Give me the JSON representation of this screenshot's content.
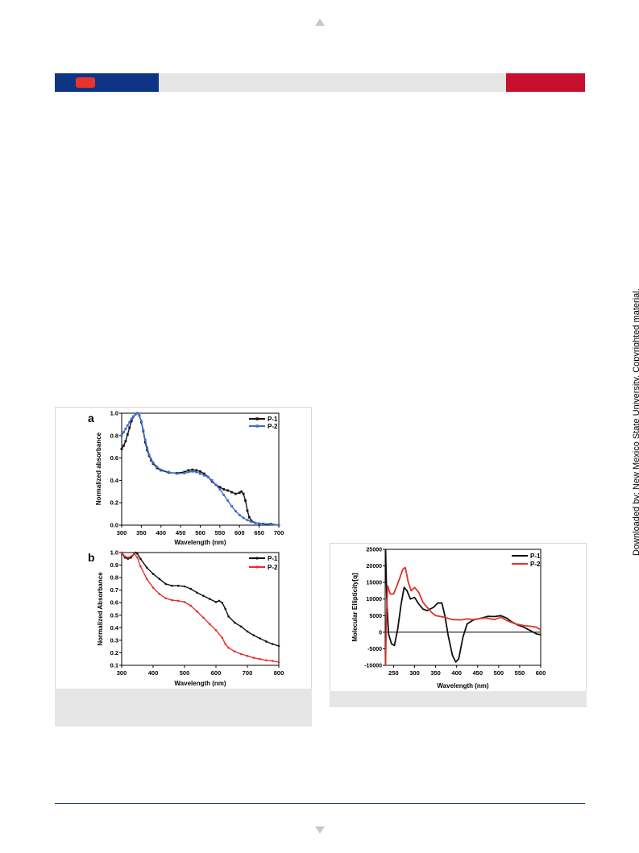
{
  "watermark": "Downloaded by: New Mexico State University. Copyrighted material.",
  "colors": {
    "header_blue": "#0d3585",
    "header_red": "#c8102e",
    "badge_red": "#e8322c",
    "caption_gray": "#e6e6e6"
  },
  "chart_data": [
    {
      "id": "a",
      "type": "line",
      "panel_label": "a",
      "xlabel": "Wavelength (nm)",
      "ylabel": "Normalized absorbance",
      "xlim": [
        300,
        700
      ],
      "ylim": [
        0.0,
        1.0
      ],
      "xticks": [
        300,
        350,
        400,
        450,
        500,
        550,
        600,
        650,
        700
      ],
      "yticks": [
        0.0,
        0.2,
        0.4,
        0.6,
        0.8,
        1.0
      ],
      "ytick_labels": [
        "0.0",
        "0.2",
        "0.4",
        "0.6",
        "0.8",
        "1.0"
      ],
      "legend_position": "top-right",
      "marker": "square",
      "series": [
        {
          "name": "P-1",
          "color": "#111111",
          "points": [
            [
              300,
              0.68
            ],
            [
              305,
              0.71
            ],
            [
              310,
              0.75
            ],
            [
              315,
              0.81
            ],
            [
              320,
              0.87
            ],
            [
              325,
              0.93
            ],
            [
              330,
              0.97
            ],
            [
              335,
              0.99
            ],
            [
              340,
              1.0
            ],
            [
              345,
              0.98
            ],
            [
              350,
              0.92
            ],
            [
              355,
              0.84
            ],
            [
              360,
              0.74
            ],
            [
              365,
              0.67
            ],
            [
              370,
              0.62
            ],
            [
              375,
              0.58
            ],
            [
              380,
              0.55
            ],
            [
              390,
              0.51
            ],
            [
              400,
              0.49
            ],
            [
              420,
              0.47
            ],
            [
              440,
              0.465
            ],
            [
              460,
              0.475
            ],
            [
              470,
              0.49
            ],
            [
              480,
              0.495
            ],
            [
              490,
              0.49
            ],
            [
              500,
              0.48
            ],
            [
              510,
              0.46
            ],
            [
              520,
              0.43
            ],
            [
              530,
              0.39
            ],
            [
              540,
              0.36
            ],
            [
              550,
              0.34
            ],
            [
              560,
              0.32
            ],
            [
              570,
              0.31
            ],
            [
              580,
              0.295
            ],
            [
              590,
              0.28
            ],
            [
              600,
              0.29
            ],
            [
              605,
              0.3
            ],
            [
              610,
              0.28
            ],
            [
              615,
              0.22
            ],
            [
              620,
              0.13
            ],
            [
              625,
              0.07
            ],
            [
              630,
              0.04
            ],
            [
              640,
              0.02
            ],
            [
              650,
              0.015
            ],
            [
              660,
              0.012
            ],
            [
              680,
              0.01
            ],
            [
              700,
              0.0
            ]
          ]
        },
        {
          "name": "P-2",
          "color": "#3b6dc4",
          "points": [
            [
              300,
              0.8
            ],
            [
              305,
              0.83
            ],
            [
              310,
              0.86
            ],
            [
              315,
              0.89
            ],
            [
              320,
              0.92
            ],
            [
              325,
              0.95
            ],
            [
              330,
              0.97
            ],
            [
              335,
              0.99
            ],
            [
              340,
              1.0
            ],
            [
              345,
              0.98
            ],
            [
              350,
              0.93
            ],
            [
              355,
              0.85
            ],
            [
              360,
              0.76
            ],
            [
              365,
              0.69
            ],
            [
              370,
              0.63
            ],
            [
              375,
              0.59
            ],
            [
              380,
              0.56
            ],
            [
              390,
              0.52
            ],
            [
              400,
              0.495
            ],
            [
              420,
              0.475
            ],
            [
              440,
              0.46
            ],
            [
              460,
              0.465
            ],
            [
              470,
              0.475
            ],
            [
              480,
              0.48
            ],
            [
              490,
              0.475
            ],
            [
              500,
              0.46
            ],
            [
              510,
              0.445
            ],
            [
              520,
              0.43
            ],
            [
              530,
              0.4
            ],
            [
              540,
              0.36
            ],
            [
              550,
              0.32
            ],
            [
              560,
              0.27
            ],
            [
              570,
              0.22
            ],
            [
              580,
              0.17
            ],
            [
              590,
              0.125
            ],
            [
              600,
              0.09
            ],
            [
              610,
              0.065
            ],
            [
              620,
              0.045
            ],
            [
              630,
              0.03
            ],
            [
              640,
              0.02
            ],
            [
              650,
              0.015
            ],
            [
              660,
              0.01
            ],
            [
              680,
              0.005
            ],
            [
              700,
              0.0
            ]
          ]
        }
      ]
    },
    {
      "id": "b",
      "type": "line",
      "panel_label": "b",
      "xlabel": "Wavelength (nm)",
      "ylabel": "Normalized Absorbance",
      "xlim": [
        300,
        800
      ],
      "ylim": [
        0.1,
        1.0
      ],
      "xticks": [
        300,
        400,
        500,
        600,
        700,
        800
      ],
      "yticks": [
        0.1,
        0.2,
        0.3,
        0.4,
        0.5,
        0.6,
        0.7,
        0.8,
        0.9,
        1.0
      ],
      "ytick_labels": [
        "0.1",
        "0.2",
        "0.3",
        "0.4",
        "0.5",
        "0.6",
        "0.7",
        "0.8",
        "0.9",
        "1.0"
      ],
      "legend_position": "top-right",
      "marker": "dot",
      "series": [
        {
          "name": "P-1",
          "color": "#111111",
          "points": [
            [
              300,
              1.0
            ],
            [
              310,
              0.96
            ],
            [
              320,
              0.95
            ],
            [
              330,
              0.96
            ],
            [
              340,
              0.99
            ],
            [
              345,
              1.0
            ],
            [
              350,
              0.99
            ],
            [
              360,
              0.95
            ],
            [
              380,
              0.88
            ],
            [
              400,
              0.83
            ],
            [
              420,
              0.79
            ],
            [
              440,
              0.75
            ],
            [
              460,
              0.735
            ],
            [
              480,
              0.735
            ],
            [
              500,
              0.73
            ],
            [
              520,
              0.71
            ],
            [
              540,
              0.68
            ],
            [
              560,
              0.655
            ],
            [
              580,
              0.63
            ],
            [
              600,
              0.605
            ],
            [
              610,
              0.615
            ],
            [
              620,
              0.6
            ],
            [
              630,
              0.55
            ],
            [
              640,
              0.49
            ],
            [
              660,
              0.44
            ],
            [
              680,
              0.41
            ],
            [
              700,
              0.37
            ],
            [
              720,
              0.34
            ],
            [
              740,
              0.315
            ],
            [
              760,
              0.29
            ],
            [
              780,
              0.27
            ],
            [
              800,
              0.255
            ]
          ]
        },
        {
          "name": "P-2",
          "color": "#e0312b",
          "points": [
            [
              300,
              1.0
            ],
            [
              310,
              0.97
            ],
            [
              320,
              0.96
            ],
            [
              330,
              0.97
            ],
            [
              340,
              0.99
            ],
            [
              350,
              0.96
            ],
            [
              360,
              0.89
            ],
            [
              380,
              0.79
            ],
            [
              400,
              0.72
            ],
            [
              420,
              0.67
            ],
            [
              440,
              0.635
            ],
            [
              460,
              0.62
            ],
            [
              480,
              0.615
            ],
            [
              500,
              0.605
            ],
            [
              520,
              0.575
            ],
            [
              540,
              0.53
            ],
            [
              560,
              0.48
            ],
            [
              580,
              0.43
            ],
            [
              600,
              0.38
            ],
            [
              620,
              0.32
            ],
            [
              630,
              0.27
            ],
            [
              640,
              0.24
            ],
            [
              660,
              0.21
            ],
            [
              680,
              0.19
            ],
            [
              700,
              0.175
            ],
            [
              720,
              0.16
            ],
            [
              740,
              0.15
            ],
            [
              760,
              0.14
            ],
            [
              780,
              0.135
            ],
            [
              800,
              0.125
            ]
          ]
        }
      ]
    },
    {
      "id": "cd",
      "type": "line",
      "panel_label": "",
      "xlabel": "Wavelength (nm)",
      "ylabel": "Molecular Ellipticity[q]",
      "xlim": [
        230,
        600
      ],
      "ylim": [
        -10000,
        25000
      ],
      "xticks": [
        250,
        300,
        350,
        400,
        450,
        500,
        550,
        600
      ],
      "yticks": [
        -10000,
        -5000,
        0,
        5000,
        10000,
        15000,
        20000,
        25000
      ],
      "ytick_labels": [
        "-10000",
        "-5000",
        "0",
        "5000",
        "10000",
        "15000",
        "20000",
        "25000"
      ],
      "zero_line": true,
      "legend_position": "top-right",
      "series": [
        {
          "name": "P-1",
          "color": "#111111",
          "points": [
            [
              231,
              25000
            ],
            [
              234,
              9000
            ],
            [
              238,
              -500
            ],
            [
              245,
              -3500
            ],
            [
              252,
              -4000
            ],
            [
              260,
              1000
            ],
            [
              268,
              8500
            ],
            [
              275,
              13500
            ],
            [
              282,
              12500
            ],
            [
              290,
              10000
            ],
            [
              300,
              10500
            ],
            [
              310,
              8500
            ],
            [
              320,
              7000
            ],
            [
              330,
              6500
            ],
            [
              345,
              7500
            ],
            [
              355,
              8800
            ],
            [
              365,
              8800
            ],
            [
              372,
              5000
            ],
            [
              380,
              -1000
            ],
            [
              390,
              -7000
            ],
            [
              398,
              -9000
            ],
            [
              405,
              -8000
            ],
            [
              415,
              -1500
            ],
            [
              425,
              2500
            ],
            [
              440,
              3700
            ],
            [
              460,
              4300
            ],
            [
              475,
              4800
            ],
            [
              490,
              4700
            ],
            [
              505,
              5000
            ],
            [
              520,
              4200
            ],
            [
              530,
              3200
            ],
            [
              545,
              2200
            ],
            [
              560,
              1500
            ],
            [
              575,
              500
            ],
            [
              590,
              -500
            ],
            [
              600,
              -800
            ]
          ]
        },
        {
          "name": "P-2",
          "color": "#e0312b",
          "points": [
            [
              231,
              -10000
            ],
            [
              233,
              5000
            ],
            [
              236,
              14000
            ],
            [
              242,
              11500
            ],
            [
              250,
              11500
            ],
            [
              258,
              14000
            ],
            [
              265,
              16500
            ],
            [
              272,
              19000
            ],
            [
              278,
              19500
            ],
            [
              285,
              15000
            ],
            [
              292,
              12500
            ],
            [
              300,
              13500
            ],
            [
              310,
              12000
            ],
            [
              320,
              9000
            ],
            [
              330,
              7500
            ],
            [
              340,
              6000
            ],
            [
              350,
              5000
            ],
            [
              370,
              4500
            ],
            [
              390,
              3800
            ],
            [
              410,
              3700
            ],
            [
              425,
              4000
            ],
            [
              440,
              3800
            ],
            [
              455,
              4100
            ],
            [
              470,
              4300
            ],
            [
              490,
              3800
            ],
            [
              505,
              4500
            ],
            [
              520,
              3500
            ],
            [
              540,
              2500
            ],
            [
              560,
              2000
            ],
            [
              575,
              1800
            ],
            [
              590,
              1500
            ],
            [
              600,
              700
            ]
          ]
        }
      ]
    }
  ]
}
